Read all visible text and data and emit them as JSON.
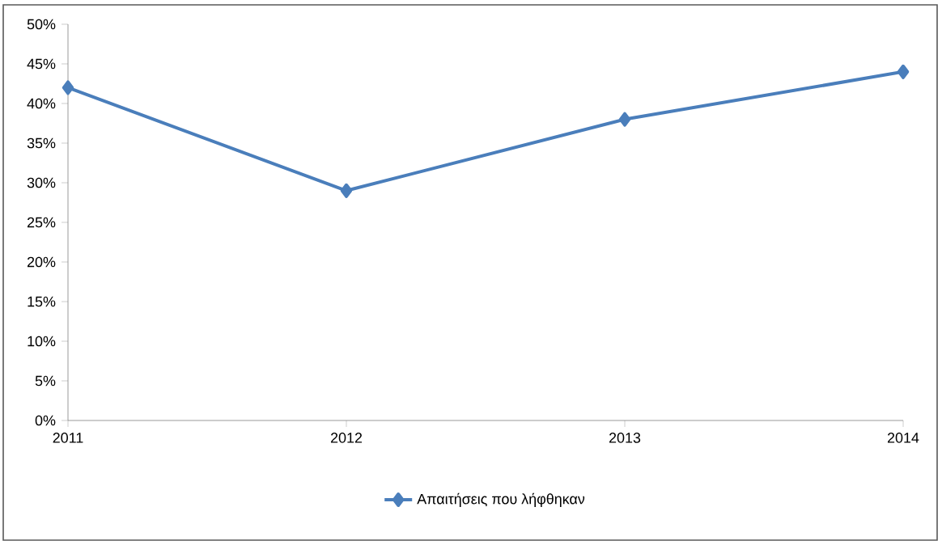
{
  "chart_data": {
    "type": "line",
    "categories": [
      "2011",
      "2012",
      "2013",
      "2014"
    ],
    "series": [
      {
        "name": "Απαιτήσεις που λήφθηκαν",
        "color": "#4a7ebb",
        "values": [
          42,
          29,
          38,
          44
        ]
      }
    ],
    "ylim": [
      0,
      50
    ],
    "yticks": [
      {
        "value": 0,
        "label": "0%"
      },
      {
        "value": 5,
        "label": "5%"
      },
      {
        "value": 10,
        "label": "10%"
      },
      {
        "value": 15,
        "label": "15%"
      },
      {
        "value": 20,
        "label": "20%"
      },
      {
        "value": 25,
        "label": "25%"
      },
      {
        "value": 30,
        "label": "30%"
      },
      {
        "value": 35,
        "label": "35%"
      },
      {
        "value": 40,
        "label": "40%"
      },
      {
        "value": 45,
        "label": "45%"
      },
      {
        "value": 50,
        "label": "50%"
      }
    ],
    "legend": "bottom",
    "marker": "diamond",
    "line_style": "solid"
  }
}
